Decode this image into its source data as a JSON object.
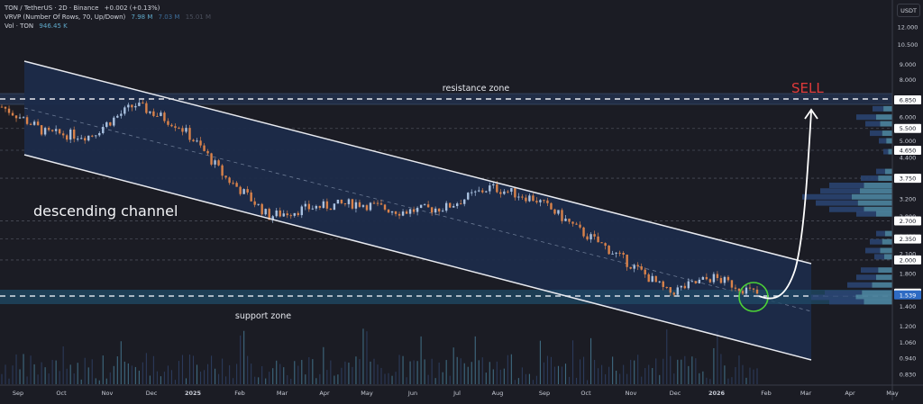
{
  "header": {
    "symbol": "TON / TetherUS · 2D · Binance",
    "change": "+0.002 (+0.13%)",
    "vrvp_label": "VRVP (Number Of Rows, 70, Up/Down)",
    "vrvp_up": "7.98 M",
    "vrvp_down": "7.03 M",
    "vrvp_total": "15.01 M",
    "vol_label": "Vol · TON",
    "vol_value": "946.45 K",
    "currency": "USDT"
  },
  "annotations": {
    "resistance": "resistance zone",
    "support": "support zone",
    "channel": "descending channel",
    "signal": "SELL"
  },
  "colors": {
    "background": "#1b1c24",
    "channel_fill": "#1c2b4a",
    "up_candle": "#a9c1e0",
    "down_candle": "#d9824a",
    "sell": "#e03a3a",
    "support_fill": "#1f4a66",
    "highlight_circle": "#4cd137",
    "current_price_bg": "#2e6bc4"
  },
  "chart_data": {
    "type": "candlestick",
    "title": "TON / TetherUS · 2D · Binance",
    "xlabel": "",
    "ylabel": "USDT",
    "scale": "log",
    "ylim": [
      0.8,
      13.0
    ],
    "x_ticks": [
      "Sep",
      "Oct",
      "Nov",
      "Dec",
      "2025",
      "Feb",
      "Mar",
      "Apr",
      "May",
      "Jun",
      "Jul",
      "Aug",
      "Sep",
      "Oct",
      "Nov",
      "Dec",
      "2026",
      "Feb",
      "Mar",
      "Apr",
      "May"
    ],
    "y_ticks": [
      12.0,
      10.5,
      9.0,
      8.0,
      7.0,
      6.0,
      5.0,
      4.4,
      3.2,
      2.8,
      2.4,
      2.1,
      1.8,
      1.4,
      1.2,
      1.06,
      0.94,
      0.83
    ],
    "y_tick_labels": [
      "12.000",
      "10.500",
      "9.000",
      "8.000",
      "7.000",
      "6.000",
      "5.000",
      "4.400",
      "3.200",
      "2.800",
      "2.400",
      "2.100",
      "1.800",
      "1.400",
      "1.200",
      "1.060",
      "0.940",
      "0.830"
    ],
    "highlighted_levels": [
      {
        "label": "6.850",
        "value": 6.85
      },
      {
        "label": "5.500",
        "value": 5.5
      },
      {
        "label": "4.650",
        "value": 4.65
      },
      {
        "label": "3.750",
        "value": 3.75
      },
      {
        "label": "2.700",
        "value": 2.7
      },
      {
        "label": "2.350",
        "value": 2.35
      },
      {
        "label": "2.000",
        "value": 2.0
      },
      {
        "label": "1.550",
        "value": 1.55
      }
    ],
    "current_price": {
      "label": "1.539",
      "value": 1.539
    },
    "approx_close_path": [
      {
        "x": "Sep 2024",
        "close": 6.5
      },
      {
        "x": "Oct 2024",
        "close": 5.3
      },
      {
        "x": "Nov 2024",
        "close": 5.2
      },
      {
        "x": "Dec 2024",
        "close": 6.6
      },
      {
        "x": "2025",
        "close": 5.6
      },
      {
        "x": "Feb 2025",
        "close": 3.8
      },
      {
        "x": "Mar 2025",
        "close": 2.8
      },
      {
        "x": "Apr 2025",
        "close": 3.0
      },
      {
        "x": "May 2025",
        "close": 3.1
      },
      {
        "x": "Jun 2025",
        "close": 2.9
      },
      {
        "x": "Jul 2025",
        "close": 3.0
      },
      {
        "x": "Aug 2025",
        "close": 3.5
      },
      {
        "x": "Sep 2025",
        "close": 3.2
      },
      {
        "x": "Oct 2025",
        "close": 2.5
      },
      {
        "x": "Nov 2025",
        "close": 2.0
      },
      {
        "x": "Dec 2025",
        "close": 1.55
      },
      {
        "x": "2026",
        "close": 1.75
      },
      {
        "x": "Jan 2026 (now)",
        "close": 1.539
      }
    ],
    "zones": [
      {
        "name": "resistance zone",
        "low": 6.5,
        "high": 7.1,
        "mid": 6.85
      },
      {
        "name": "support zone",
        "low": 1.47,
        "high": 1.6,
        "mid": 1.539
      }
    ],
    "channel": {
      "name": "descending channel",
      "upper_start": 9.2,
      "upper_end": 2.0,
      "lower_start": 4.5,
      "lower_end": 0.94
    },
    "projection": {
      "label": "SELL",
      "from": 1.539,
      "to": 6.5,
      "target_date": "Mar 2026"
    },
    "volume_profile": {
      "up": "7.98 M",
      "down": "7.03 M",
      "total": "15.01 M",
      "rows": 70
    }
  }
}
